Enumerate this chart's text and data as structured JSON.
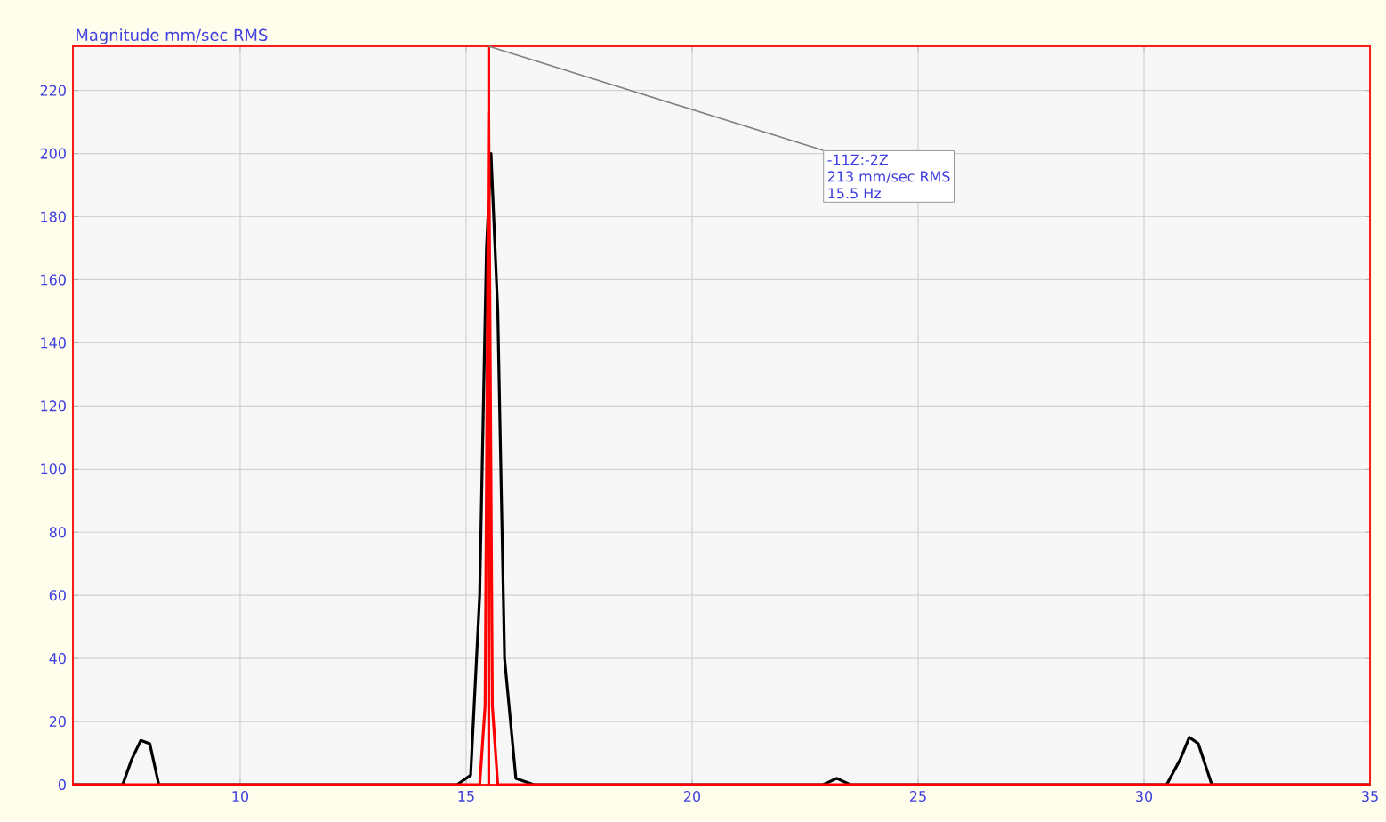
{
  "chart_data": {
    "type": "line",
    "ylabel": "Magnitude mm/sec RMS",
    "series": [
      {
        "color": "#000000",
        "x": [
          6.3,
          7.4,
          7.6,
          7.8,
          8.0,
          8.2,
          14.8,
          15.1,
          15.3,
          15.45,
          15.55,
          15.7,
          15.85,
          16.1,
          16.5,
          22.9,
          23.2,
          23.5,
          30.5,
          30.8,
          31.0,
          31.2,
          31.5,
          35
        ],
        "values": [
          0,
          0,
          8,
          14,
          13,
          0,
          0,
          3,
          60,
          170,
          200,
          150,
          40,
          2,
          0,
          0,
          2,
          0,
          0,
          8,
          15,
          13,
          0,
          0
        ]
      },
      {
        "color": "#ff0000",
        "x": [
          6.3,
          15.3,
          15.42,
          15.5,
          15.58,
          15.7,
          35
        ],
        "values": [
          0,
          0,
          25,
          213,
          25,
          0,
          0
        ]
      }
    ],
    "ref_lines": [
      {
        "axis": "x",
        "value": 15.5,
        "color": "#ff0000"
      }
    ],
    "annotations": [
      {
        "text": "-11Z:-2Z",
        "x": 15.5,
        "y": 234
      },
      "213 mm/sec RMS",
      "15.5 Hz"
    ],
    "xlim": [
      6.3,
      35
    ],
    "ylim": [
      0,
      234
    ],
    "xticks": [
      10,
      15,
      20,
      25,
      30,
      35
    ],
    "yticks": [
      0,
      20,
      40,
      60,
      80,
      100,
      120,
      140,
      160,
      180,
      200,
      220
    ],
    "grid": true,
    "marker": "none",
    "line_style": "solid"
  }
}
